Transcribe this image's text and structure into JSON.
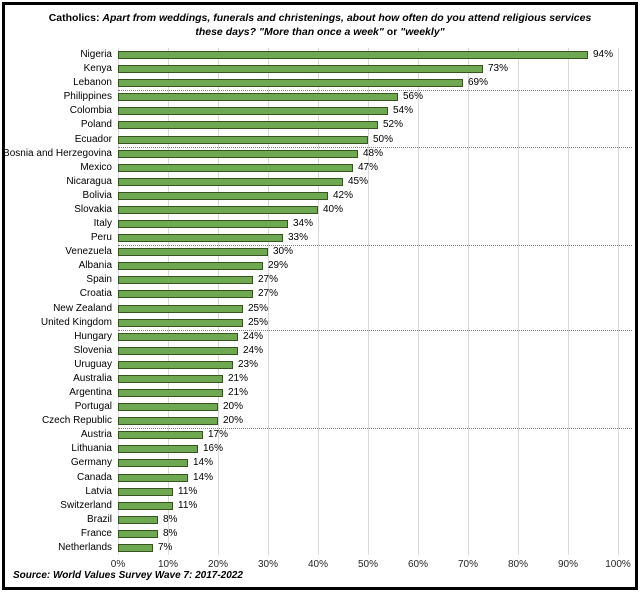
{
  "title": {
    "segments": [
      {
        "text": "Catholics: ",
        "italic": false
      },
      {
        "text": "Apart from weddings, funerals and christenings, about how often do you attend religious services these days? ",
        "italic": true
      },
      {
        "text": "\"More than once a week\"",
        "italic": true
      },
      {
        "text": " or ",
        "italic": false
      },
      {
        "text": "\"weekly\"",
        "italic": true
      }
    ],
    "full_text": "Catholics: Apart from weddings, funerals and christenings, about how often do you attend religious services these days? \"More than once a week\" or \"weekly\""
  },
  "source": "Source: World Values Survey Wave 7: 2017-2022",
  "chart_data": {
    "type": "bar",
    "orientation": "horizontal",
    "title": "Catholics: Apart from weddings, funerals and christenings, about how often do you attend religious services these days? \"More than once a week\" or \"weekly\"",
    "categories": [
      "Nigeria",
      "Kenya",
      "Lebanon",
      "Philippines",
      "Colombia",
      "Poland",
      "Ecuador",
      "Bosnia and Herzegovina",
      "Mexico",
      "Nicaragua",
      "Bolivia",
      "Slovakia",
      "Italy",
      "Peru",
      "Venezuela",
      "Albania",
      "Spain",
      "Croatia",
      "New Zealand",
      "United Kingdom",
      "Hungary",
      "Slovenia",
      "Uruguay",
      "Australia",
      "Argentina",
      "Portugal",
      "Czech Republic",
      "Austria",
      "Lithuania",
      "Germany",
      "Canada",
      "Latvia",
      "Switzerland",
      "Brazil",
      "France",
      "Netherlands"
    ],
    "values": [
      94,
      73,
      69,
      56,
      54,
      52,
      50,
      48,
      47,
      45,
      42,
      40,
      34,
      33,
      30,
      29,
      27,
      27,
      25,
      25,
      24,
      24,
      23,
      21,
      21,
      20,
      20,
      17,
      16,
      14,
      14,
      11,
      11,
      8,
      8,
      7
    ],
    "value_suffix": "%",
    "xlabel": "",
    "ylabel": "",
    "xlim": [
      0,
      100
    ],
    "x_ticks": [
      "0%",
      "10%",
      "20%",
      "30%",
      "40%",
      "50%",
      "60%",
      "70%",
      "80%",
      "90%",
      "100%"
    ],
    "grid": "vertical",
    "legend": "none",
    "separators_after": [
      "Lebanon",
      "Ecuador",
      "Peru",
      "United Kingdom",
      "Czech Republic"
    ],
    "source": "Source: World Values Survey Wave 7: 2017-2022",
    "colors": {
      "bar_fill": "#6ea951",
      "bar_border": "#375420",
      "gridline": "#d9d9d9",
      "separator": "#7f7f7f",
      "frame_border": "#000000",
      "text": "#000000"
    }
  }
}
